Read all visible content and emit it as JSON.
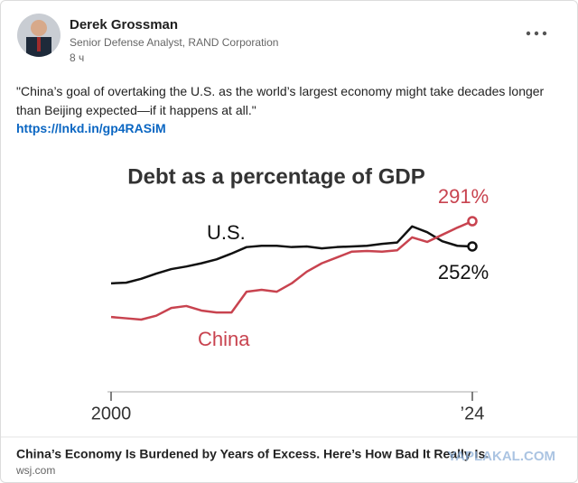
{
  "post": {
    "author": "Derek Grossman",
    "headline": "Senior Defense Analyst, RAND Corporation",
    "time": "8 ч",
    "text": "\"China’s goal of overtaking the U.S. as the world’s largest economy might take decades longer than Beijing expected—if it happens at all.\"",
    "link": "https://lnkd.in/gp4RASiM"
  },
  "chart_data": {
    "type": "line",
    "title": "Debt as a percentage of GDP",
    "x": [
      2000,
      2001,
      2002,
      2003,
      2004,
      2005,
      2006,
      2007,
      2008,
      2009,
      2010,
      2011,
      2012,
      2013,
      2014,
      2015,
      2016,
      2017,
      2018,
      2019,
      2020,
      2021,
      2022,
      2023,
      2024
    ],
    "series": [
      {
        "name": "U.S.",
        "color": "#111111",
        "end_label": "252%",
        "values": [
          195,
          196,
          202,
          210,
          217,
          221,
          226,
          232,
          241,
          251,
          253,
          253,
          251,
          252,
          249,
          251,
          252,
          253,
          256,
          258,
          283,
          274,
          260,
          253,
          252
        ]
      },
      {
        "name": "China",
        "color": "#c8434f",
        "end_label": "291%",
        "values": [
          143,
          141,
          139,
          145,
          157,
          160,
          153,
          150,
          150,
          182,
          185,
          182,
          195,
          213,
          226,
          235,
          244,
          245,
          244,
          246,
          266,
          259,
          270,
          281,
          291
        ]
      }
    ],
    "xlim": [
      2000,
      2024
    ],
    "xticks": [
      2000,
      {
        "value": 2024,
        "label": "’24"
      }
    ]
  },
  "article": {
    "title": "China’s Economy Is Burdened by Years of Excess. Here’s How Bad It Really Is.",
    "source": "wsj.com"
  },
  "watermark": "YAPLAKAL.COM"
}
